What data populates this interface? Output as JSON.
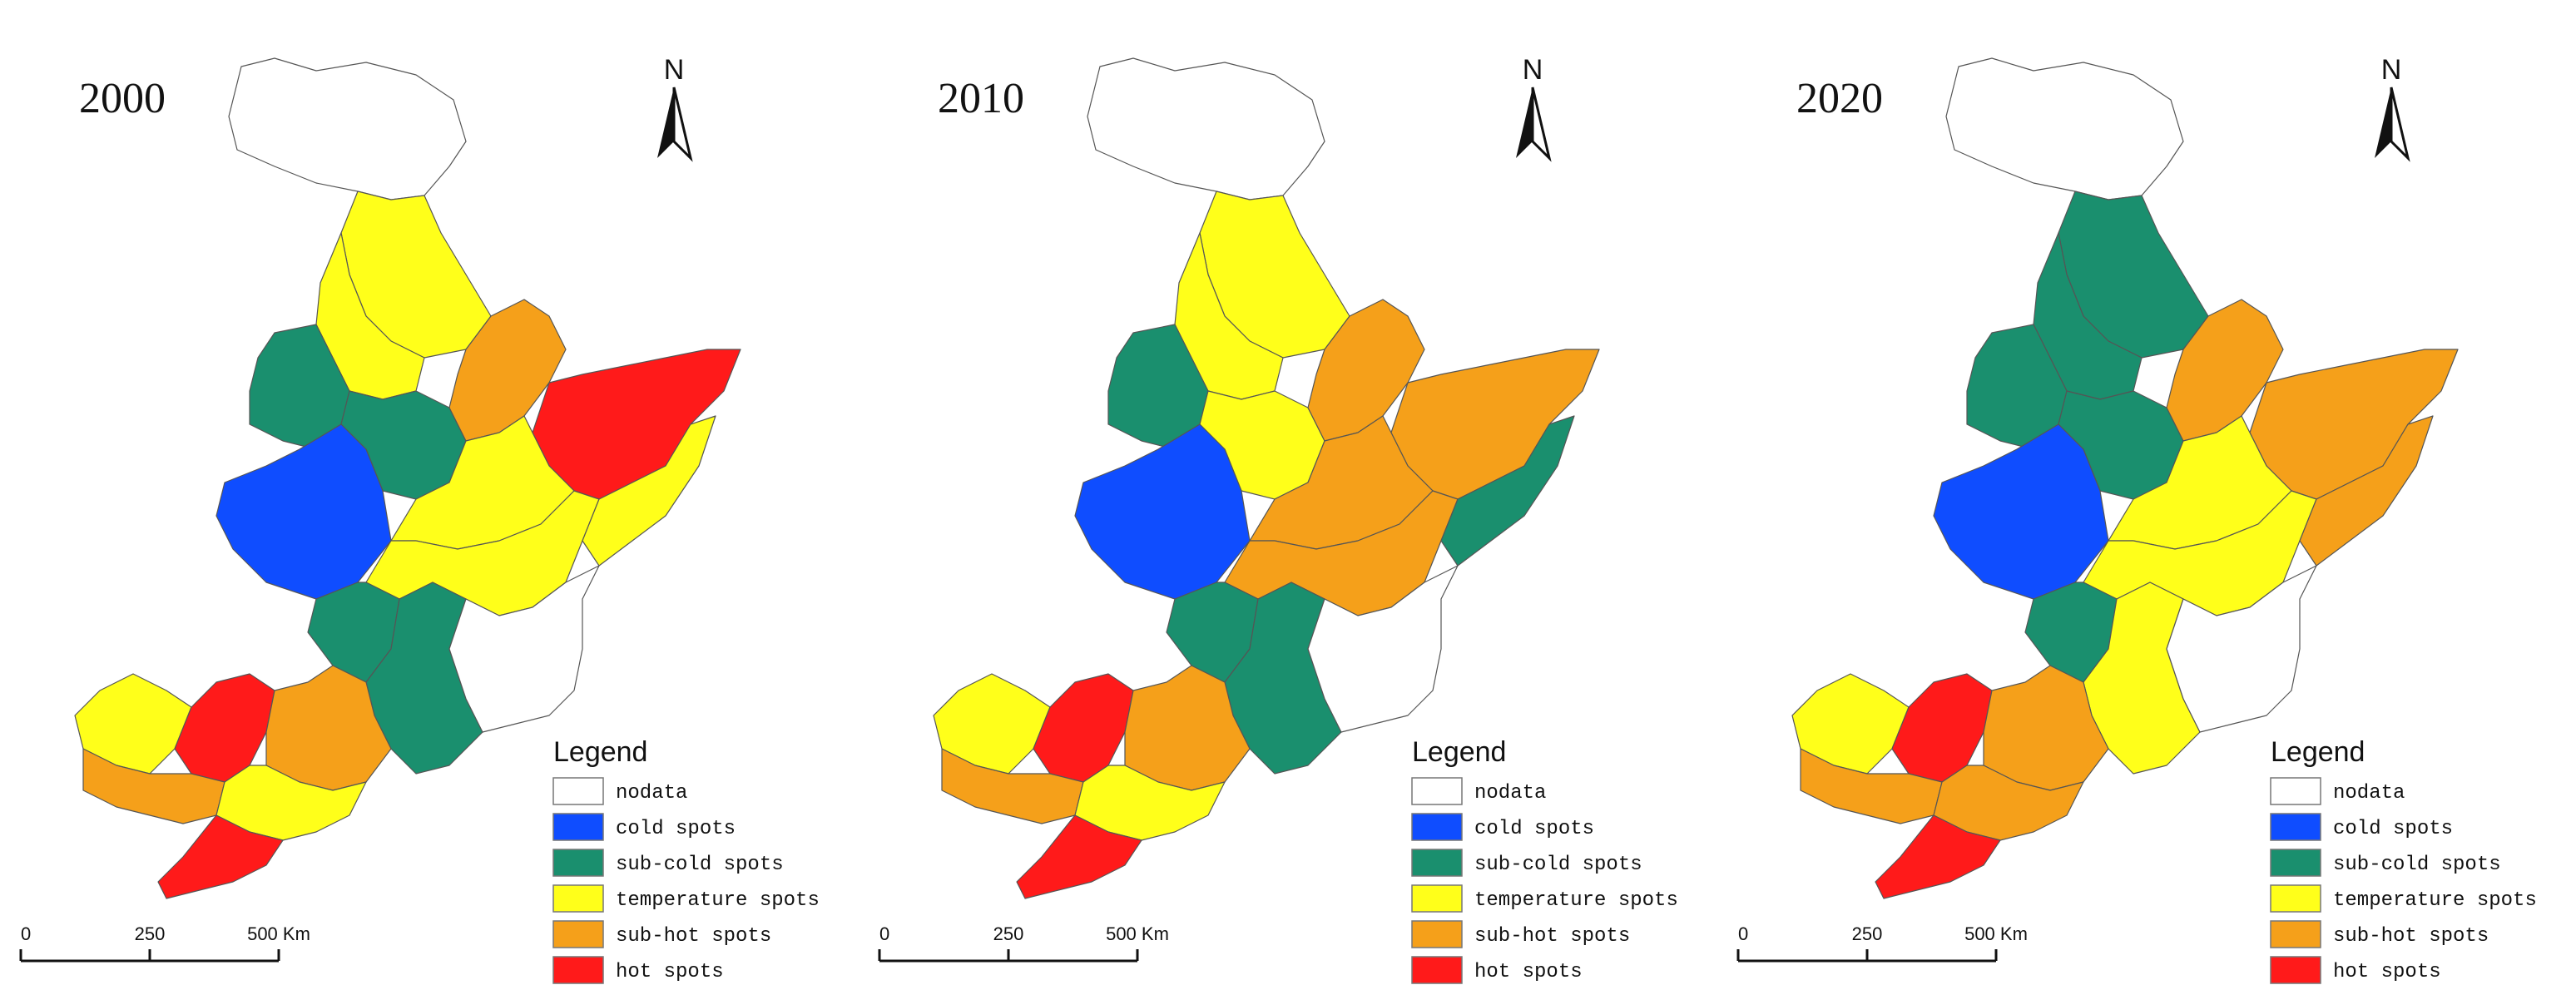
{
  "colors": {
    "nodata": "#ffffff",
    "cold": "#0f4dff",
    "subcold": "#1a8f6e",
    "temperate": "#ffff1a",
    "subhot": "#f5a01a",
    "hot": "#ff1a1a"
  },
  "legend": {
    "title": "Legend",
    "items": [
      {
        "key": "nodata",
        "label": "nodata"
      },
      {
        "key": "cold",
        "label": "cold spots"
      },
      {
        "key": "subcold",
        "label": "sub-cold spots"
      },
      {
        "key": "temperate",
        "label": "temperature spots"
      },
      {
        "key": "subhot",
        "label": "sub-hot spots"
      },
      {
        "key": "hot",
        "label": "hot spots"
      }
    ]
  },
  "scalebar": {
    "ticks": [
      "0",
      "250",
      "500 Km"
    ]
  },
  "north_label": "N",
  "maps": [
    {
      "year": "2000",
      "regions": {
        "north_top": "nodata",
        "north1": "temperate",
        "north2": "temperate",
        "nw1": "subcold",
        "nw2": "subcold",
        "west": "cold",
        "cent1": "temperate",
        "cent2": "temperate",
        "ne1": "subhot",
        "ne2": "hot",
        "east": "temperate",
        "s1": "subcold",
        "s2": "subcold",
        "sw1": "temperate",
        "sw2": "hot",
        "sw3": "subhot",
        "sw4": "subhot",
        "pen": "hot",
        "pen2": "temperate",
        "se": "nodata"
      }
    },
    {
      "year": "2010",
      "regions": {
        "north_top": "nodata",
        "north1": "temperate",
        "north2": "temperate",
        "nw1": "subcold",
        "nw2": "temperate",
        "west": "cold",
        "cent1": "subhot",
        "cent2": "subhot",
        "ne1": "subhot",
        "ne2": "subhot",
        "east": "subcold",
        "s1": "subcold",
        "s2": "subcold",
        "sw1": "temperate",
        "sw2": "hot",
        "sw3": "subhot",
        "sw4": "subhot",
        "pen": "hot",
        "pen2": "temperate",
        "se": "nodata"
      }
    },
    {
      "year": "2020",
      "regions": {
        "north_top": "nodata",
        "north1": "subcold",
        "north2": "subcold",
        "nw1": "subcold",
        "nw2": "subcold",
        "west": "cold",
        "cent1": "temperate",
        "cent2": "temperate",
        "ne1": "subhot",
        "ne2": "subhot",
        "east": "subhot",
        "s1": "subcold",
        "s2": "temperate",
        "sw1": "temperate",
        "sw2": "hot",
        "sw3": "subhot",
        "sw4": "subhot",
        "pen": "hot",
        "pen2": "subhot",
        "se": "nodata"
      }
    }
  ]
}
